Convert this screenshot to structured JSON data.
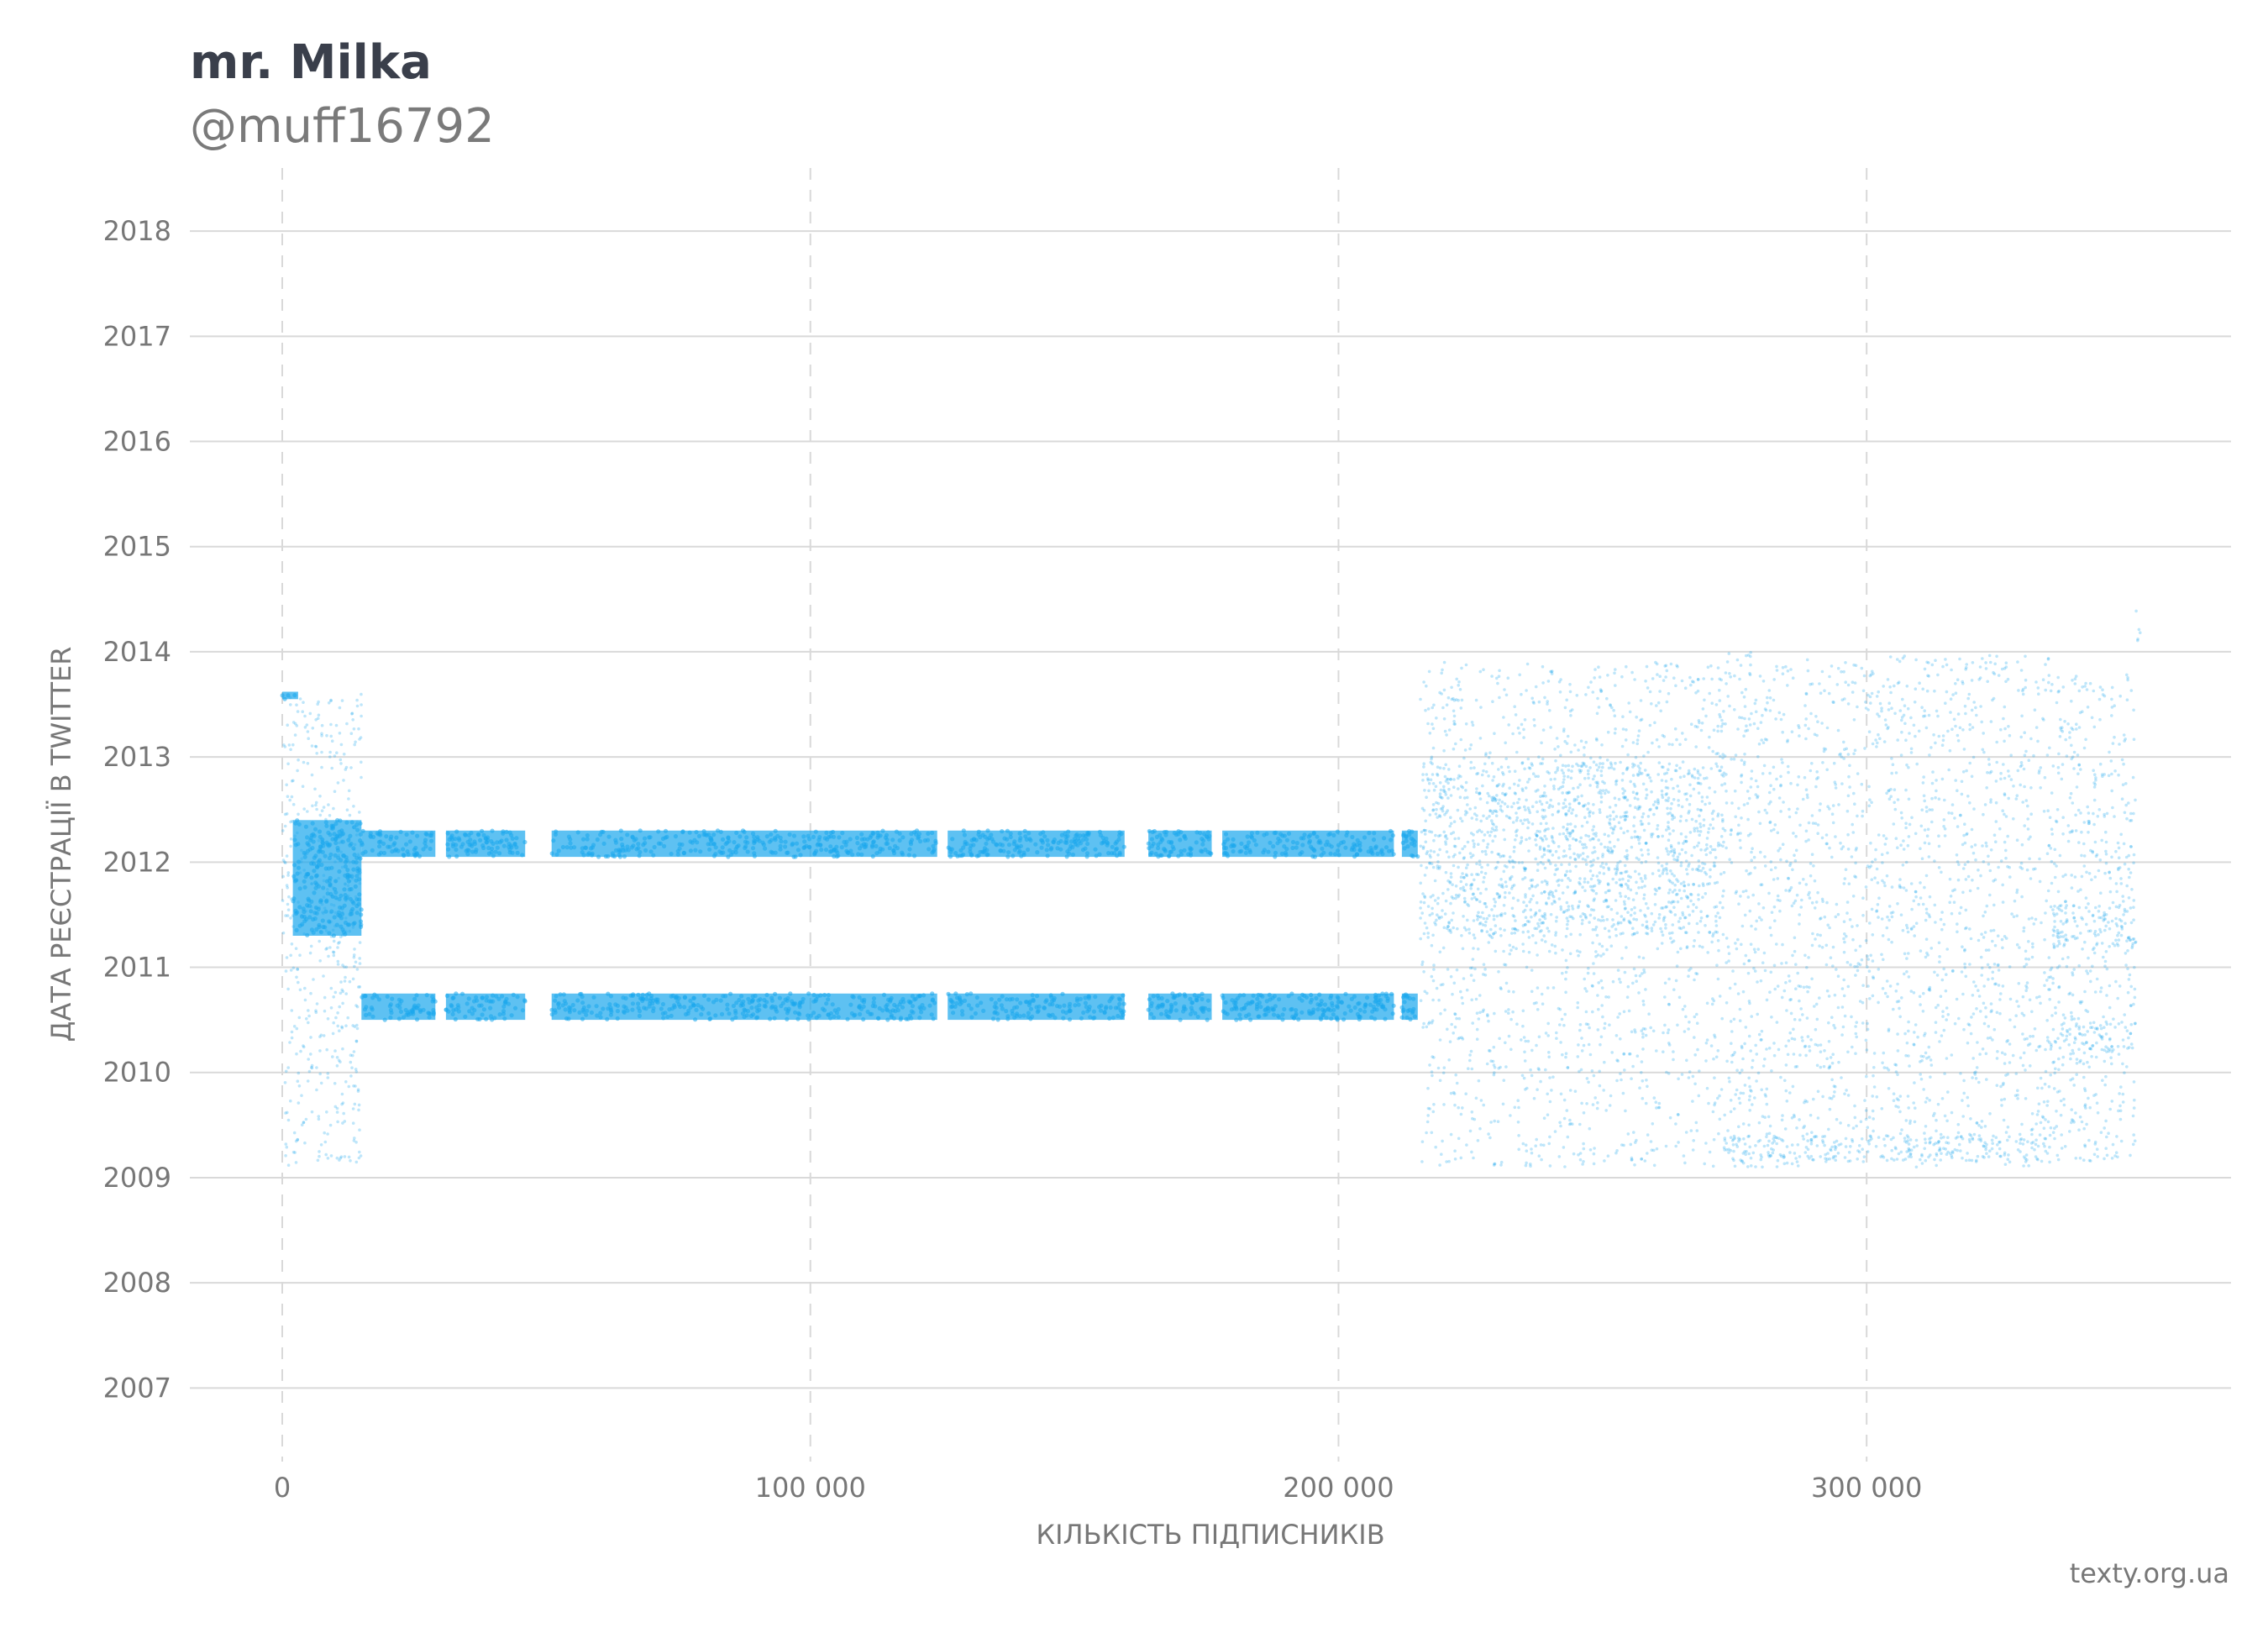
{
  "header": {
    "title": "mr. Milka",
    "subtitle": "@muff16792"
  },
  "footer": {
    "source": "texty.org.ua"
  },
  "colors": {
    "points": "#1aa7ec",
    "grid": "#d9d9d9",
    "text": "#777777",
    "title": "#3a3f4b"
  },
  "chart_data": {
    "type": "scatter",
    "xlabel": "КІЛЬКІСТЬ ПІДПИСНИКІВ",
    "ylabel": "ДАТА РЕЄСТРАЦІЇ В TWITTER",
    "xlim": [
      -17500,
      369000
    ],
    "ylim": [
      2006.3,
      2018.6
    ],
    "x_ticks": [
      0,
      100000,
      200000,
      300000
    ],
    "x_tick_labels": [
      "0",
      "100 000",
      "200 000",
      "300 000"
    ],
    "y_ticks": [
      2007,
      2008,
      2009,
      2010,
      2011,
      2012,
      2013,
      2014,
      2015,
      2016,
      2017,
      2018
    ],
    "y_tick_labels": [
      "2007",
      "2008",
      "2009",
      "2010",
      "2011",
      "2012",
      "2013",
      "2014",
      "2015",
      "2016",
      "2017",
      "2018"
    ],
    "grid": {
      "horizontal": "solid",
      "vertical": "dashed"
    },
    "legend": "none",
    "regions": [
      {
        "x": [
          0,
          15000
        ],
        "y": [
          2009.1,
          2013.6
        ],
        "density": 0.35
      },
      {
        "x": [
          2000,
          15000
        ],
        "y": [
          2011.3,
          2012.4
        ],
        "density": 0.9
      },
      {
        "x": [
          0,
          3000
        ],
        "y": [
          2013.55,
          2013.62
        ],
        "density": 1.0
      },
      {
        "x": [
          15000,
          215000
        ],
        "y": [
          2012.05,
          2012.3
        ],
        "density": 1.0
      },
      {
        "x": [
          15000,
          215000
        ],
        "y": [
          2010.5,
          2010.75
        ],
        "density": 1.0
      },
      {
        "x": [
          215500,
          273000
        ],
        "y": [
          2011.3,
          2012.95
        ],
        "density": 0.6
      },
      {
        "x": [
          215500,
          273000
        ],
        "y": [
          2009.1,
          2013.9
        ],
        "density": 0.25
      },
      {
        "x": [
          273000,
          335000
        ],
        "y": [
          2009.1,
          2014.0
        ],
        "density": 0.3
      },
      {
        "x": [
          273000,
          335000
        ],
        "y": [
          2009.15,
          2009.4
        ],
        "density": 0.7
      },
      {
        "x": [
          335000,
          351000
        ],
        "y": [
          2009.15,
          2013.8
        ],
        "density": 0.35
      },
      {
        "x": [
          335000,
          351000
        ],
        "y": [
          2011.2,
          2011.6
        ],
        "density": 0.7
      },
      {
        "x": [
          335000,
          351000
        ],
        "y": [
          2010.2,
          2010.5
        ],
        "density": 0.7
      },
      {
        "x": [
          351000,
          352000
        ],
        "y": [
          2014.1,
          2014.4
        ],
        "density": 0.8
      }
    ],
    "band_gaps_x": [
      [
        29000,
        31000
      ],
      [
        46000,
        51000
      ],
      [
        124000,
        126000
      ],
      [
        159500,
        164000
      ],
      [
        176000,
        178000
      ],
      [
        210500,
        212000
      ]
    ]
  }
}
